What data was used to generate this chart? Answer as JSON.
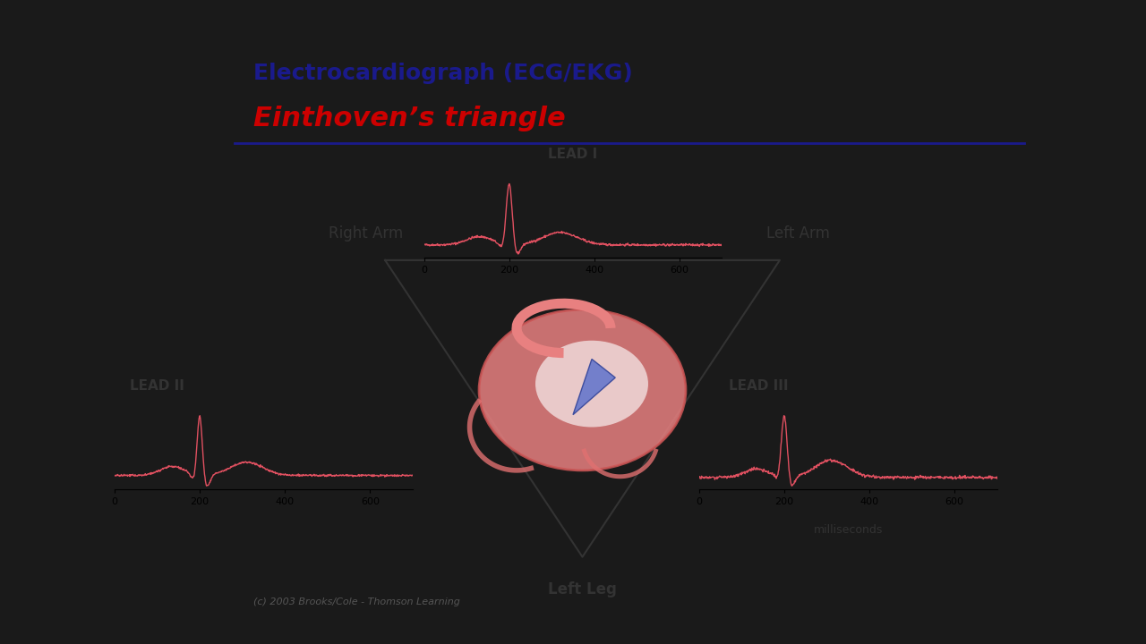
{
  "title_line1": "Electrocardiograph (ECG/EKG)",
  "title_line2": "Einthoven’s triangle",
  "title_line1_color": "#1a1a8c",
  "title_line2_color": "#cc0000",
  "bg_color": "#ffffff",
  "outer_bg_color": "#1a1a1a",
  "triangle_color": "#333333",
  "ecg_color": "#e05060",
  "label_color": "#333333",
  "lead1_label": "LEAD I",
  "lead2_label": "LEAD II",
  "lead3_label": "LEAD III",
  "right_arm_label": "Right Arm",
  "left_arm_label": "Left Arm",
  "left_leg_label": "Left Leg",
  "milliseconds_label": "milliseconds",
  "copyright": "(c) 2003 Brooks/Cole - Thomson Learning",
  "separator_color": "#1a1a8c"
}
